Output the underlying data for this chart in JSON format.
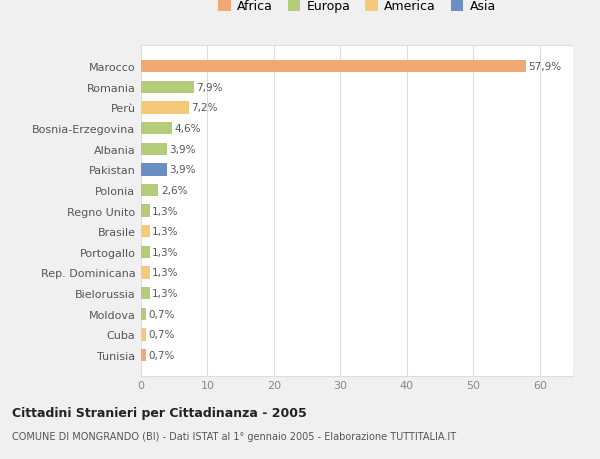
{
  "categories": [
    "Tunisia",
    "Cuba",
    "Moldova",
    "Bielorussia",
    "Rep. Dominicana",
    "Portogallo",
    "Brasile",
    "Regno Unito",
    "Polonia",
    "Pakistan",
    "Albania",
    "Bosnia-Erzegovina",
    "Perù",
    "Romania",
    "Marocco"
  ],
  "values": [
    0.7,
    0.7,
    0.7,
    1.3,
    1.3,
    1.3,
    1.3,
    1.3,
    2.6,
    3.9,
    3.9,
    4.6,
    7.2,
    7.9,
    57.9
  ],
  "labels": [
    "0,7%",
    "0,7%",
    "0,7%",
    "1,3%",
    "1,3%",
    "1,3%",
    "1,3%",
    "1,3%",
    "2,6%",
    "3,9%",
    "3,9%",
    "4,6%",
    "7,2%",
    "7,9%",
    "57,9%"
  ],
  "colors": [
    "#f0a875",
    "#f5c97a",
    "#b5cc7a",
    "#b5cc7a",
    "#f5c97a",
    "#b5cc7a",
    "#f5c97a",
    "#b5cc7a",
    "#b5cc7a",
    "#6b8ec4",
    "#b5cc7a",
    "#b5cc7a",
    "#f5c97a",
    "#b5cc7a",
    "#f0a875"
  ],
  "legend_labels": [
    "Africa",
    "Europa",
    "America",
    "Asia"
  ],
  "legend_colors": [
    "#f0a875",
    "#b5cc7a",
    "#f5c97a",
    "#6b8ec4"
  ],
  "title": "Cittadini Stranieri per Cittadinanza - 2005",
  "subtitle": "COMUNE DI MONGRANDO (BI) - Dati ISTAT al 1° gennaio 2005 - Elaborazione TUTTITALIA.IT",
  "xlim": [
    0,
    65
  ],
  "xticks": [
    0,
    10,
    20,
    30,
    40,
    50,
    60
  ],
  "bg_color": "#f0f0f0",
  "plot_bg_color": "#ffffff",
  "grid_color": "#dddddd",
  "label_color": "#555555",
  "tick_color": "#888888"
}
